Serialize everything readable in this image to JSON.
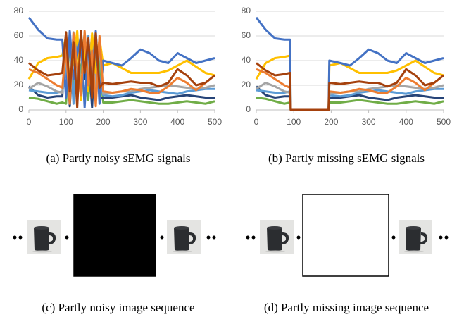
{
  "chart_data": [
    {
      "type": "line",
      "caption": "(a) Partly noisy sEMG signals",
      "x": [
        0,
        25,
        50,
        75,
        90,
        100,
        110,
        120,
        130,
        140,
        150,
        160,
        170,
        180,
        190,
        200,
        225,
        250,
        275,
        300,
        325,
        350,
        375,
        400,
        425,
        450,
        475,
        500
      ],
      "xlim": [
        0,
        500
      ],
      "ylim": [
        0,
        80
      ],
      "xticks": [
        0,
        100,
        200,
        300,
        400,
        500
      ],
      "yticks": [
        0,
        20,
        40,
        60,
        80
      ],
      "grid": true,
      "series": [
        {
          "color": "#70ad47",
          "values": [
            10,
            9,
            7,
            5,
            6,
            5,
            60,
            12,
            48,
            30,
            62,
            8,
            55,
            20,
            40,
            6,
            6,
            7,
            8,
            7,
            6,
            5,
            5,
            6,
            7,
            6,
            5,
            7
          ]
        },
        {
          "color": "#264478",
          "values": [
            19,
            12,
            10,
            11,
            11,
            62,
            3,
            50,
            15,
            58,
            25,
            45,
            2,
            60,
            10,
            10,
            10,
            11,
            12,
            10,
            9,
            8,
            10,
            11,
            12,
            11,
            10,
            10
          ]
        },
        {
          "color": "#5b9bd5",
          "values": [
            16,
            15,
            14,
            14,
            15,
            30,
            55,
            5,
            62,
            18,
            40,
            60,
            12,
            50,
            25,
            12,
            11,
            12,
            14,
            15,
            16,
            15,
            14,
            13,
            15,
            16,
            17,
            17
          ]
        },
        {
          "color": "#a5a5a5",
          "values": [
            17,
            22,
            19,
            15,
            14,
            45,
            10,
            63,
            22,
            55,
            5,
            35,
            60,
            15,
            52,
            13,
            14,
            15,
            15,
            17,
            18,
            19,
            20,
            19,
            18,
            17,
            18,
            20
          ]
        },
        {
          "color": "#ffc000",
          "values": [
            25,
            38,
            42,
            43,
            44,
            60,
            20,
            40,
            64,
            8,
            50,
            15,
            62,
            30,
            58,
            36,
            38,
            34,
            30,
            30,
            30,
            30,
            32,
            36,
            40,
            35,
            30,
            28
          ]
        },
        {
          "color": "#4472c4",
          "values": [
            75,
            65,
            58,
            57,
            57,
            10,
            64,
            25,
            45,
            60,
            2,
            55,
            28,
            64,
            5,
            40,
            38,
            36,
            42,
            49,
            46,
            40,
            38,
            46,
            42,
            38,
            40,
            42
          ]
        },
        {
          "color": "#ed7d31",
          "values": [
            33,
            30,
            25,
            20,
            18,
            50,
            5,
            62,
            35,
            12,
            64,
            20,
            48,
            3,
            60,
            15,
            14,
            15,
            17,
            16,
            14,
            14,
            19,
            26,
            22,
            16,
            22,
            28
          ]
        },
        {
          "color": "#a5410d",
          "values": [
            38,
            32,
            28,
            29,
            30,
            63,
            15,
            55,
            2,
            64,
            30,
            58,
            10,
            62,
            18,
            22,
            21,
            22,
            23,
            22,
            22,
            19,
            22,
            33,
            28,
            20,
            22,
            28
          ]
        }
      ]
    },
    {
      "type": "line",
      "caption": "(b) Partly missing sEMG signals",
      "x": [
        0,
        25,
        50,
        75,
        90,
        92,
        193,
        195,
        225,
        250,
        275,
        300,
        325,
        350,
        375,
        400,
        425,
        450,
        475,
        500
      ],
      "xlim": [
        0,
        500
      ],
      "ylim": [
        0,
        80
      ],
      "xticks": [
        0,
        100,
        200,
        300,
        400,
        500
      ],
      "yticks": [
        0,
        20,
        40,
        60,
        80
      ],
      "grid": true,
      "series": [
        {
          "color": "#70ad47",
          "values": [
            10,
            9,
            7,
            5,
            6,
            0,
            0,
            6,
            6,
            7,
            8,
            7,
            6,
            5,
            5,
            6,
            7,
            6,
            5,
            7
          ]
        },
        {
          "color": "#264478",
          "values": [
            19,
            12,
            10,
            11,
            11,
            0,
            0,
            10,
            10,
            11,
            12,
            10,
            9,
            8,
            10,
            11,
            12,
            11,
            10,
            10
          ]
        },
        {
          "color": "#5b9bd5",
          "values": [
            16,
            15,
            14,
            14,
            15,
            0,
            0,
            12,
            11,
            12,
            14,
            15,
            16,
            15,
            14,
            13,
            15,
            16,
            17,
            17
          ]
        },
        {
          "color": "#a5a5a5",
          "values": [
            17,
            22,
            19,
            15,
            14,
            0,
            0,
            13,
            14,
            15,
            15,
            17,
            18,
            19,
            20,
            19,
            18,
            17,
            18,
            20
          ]
        },
        {
          "color": "#ffc000",
          "values": [
            25,
            38,
            42,
            43,
            44,
            0,
            0,
            36,
            38,
            34,
            30,
            30,
            30,
            30,
            32,
            36,
            40,
            35,
            30,
            28
          ]
        },
        {
          "color": "#4472c4",
          "values": [
            75,
            65,
            58,
            57,
            57,
            0,
            0,
            40,
            38,
            36,
            42,
            49,
            46,
            40,
            38,
            46,
            42,
            38,
            40,
            42
          ]
        },
        {
          "color": "#ed7d31",
          "values": [
            33,
            30,
            25,
            20,
            18,
            0,
            0,
            15,
            14,
            15,
            17,
            16,
            14,
            14,
            19,
            26,
            22,
            16,
            22,
            28
          ]
        },
        {
          "color": "#a5410d",
          "values": [
            38,
            32,
            28,
            29,
            30,
            0,
            0,
            22,
            21,
            22,
            23,
            22,
            22,
            19,
            22,
            33,
            28,
            20,
            22,
            28
          ]
        }
      ]
    }
  ],
  "image_panels": [
    {
      "caption": "(c) Partly noisy image sequence"
    },
    {
      "caption": "(d) Partly missing image sequence"
    }
  ]
}
